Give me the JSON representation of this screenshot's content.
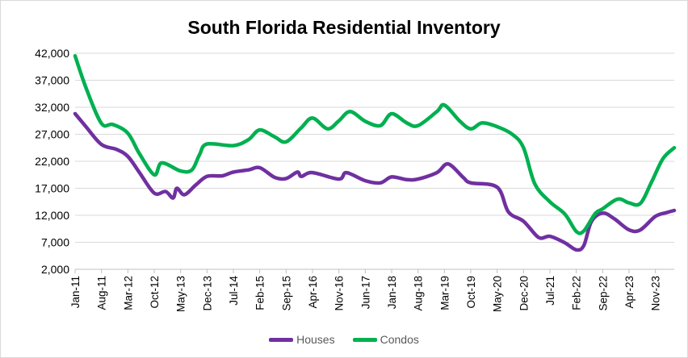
{
  "chart_data": {
    "type": "line",
    "title": "South Florida Residential Inventory",
    "xlabel": "",
    "ylabel": "",
    "ylim": [
      2000,
      42000
    ],
    "y_ticks": [
      "2,000",
      "7,000",
      "12,000",
      "17,000",
      "22,000",
      "27,000",
      "32,000",
      "37,000",
      "42,000"
    ],
    "x_tick_labels": [
      "Jan-11",
      "Aug-11",
      "Mar-12",
      "Oct-12",
      "May-13",
      "Dec-13",
      "Jul-14",
      "Feb-15",
      "Sep-15",
      "Apr-16",
      "Nov-16",
      "Jun-17",
      "Jan-18",
      "Aug-18",
      "Mar-19",
      "Oct-19",
      "May-20",
      "Dec-20",
      "Jul-21",
      "Feb-22",
      "Sep-22",
      "Apr-23",
      "Nov-23"
    ],
    "grid": "horizontal",
    "legend_position": "bottom",
    "x_start": "Jan-11",
    "x_end": "Apr-24",
    "series": [
      {
        "name": "Houses",
        "color": "#7030A0",
        "points": [
          [
            "Jan-11",
            30800
          ],
          [
            "Apr-11",
            28300
          ],
          [
            "Aug-11",
            25100
          ],
          [
            "Dec-11",
            24200
          ],
          [
            "Mar-12",
            22900
          ],
          [
            "Jun-12",
            20000
          ],
          [
            "Oct-12",
            16100
          ],
          [
            "Jan-13",
            16400
          ],
          [
            "Mar-13",
            15200
          ],
          [
            "Apr-13",
            17000
          ],
          [
            "Jun-13",
            15800
          ],
          [
            "Sep-13",
            17600
          ],
          [
            "Dec-13",
            19200
          ],
          [
            "Apr-14",
            19300
          ],
          [
            "Jul-14",
            20000
          ],
          [
            "Nov-14",
            20400
          ],
          [
            "Feb-15",
            20800
          ],
          [
            "Jun-15",
            19000
          ],
          [
            "Sep-15",
            18800
          ],
          [
            "Dec-15",
            20000
          ],
          [
            "Jan-16",
            19200
          ],
          [
            "Apr-16",
            19900
          ],
          [
            "Nov-16",
            18700
          ],
          [
            "Jan-17",
            19900
          ],
          [
            "Jun-17",
            18400
          ],
          [
            "Oct-17",
            18000
          ],
          [
            "Jan-18",
            19100
          ],
          [
            "May-18",
            18600
          ],
          [
            "Aug-18",
            18700
          ],
          [
            "Jan-19",
            19900
          ],
          [
            "Apr-19",
            21500
          ],
          [
            "Aug-19",
            19000
          ],
          [
            "Oct-19",
            18000
          ],
          [
            "May-20",
            17200
          ],
          [
            "Aug-20",
            12600
          ],
          [
            "Dec-20",
            10900
          ],
          [
            "Apr-21",
            7900
          ],
          [
            "Jul-21",
            8100
          ],
          [
            "Nov-21",
            6900
          ],
          [
            "Feb-22",
            5600
          ],
          [
            "Apr-22",
            6400
          ],
          [
            "Jun-22",
            10800
          ],
          [
            "Sep-22",
            12400
          ],
          [
            "Dec-22",
            11400
          ],
          [
            "Apr-23",
            9300
          ],
          [
            "Jul-23",
            9300
          ],
          [
            "Nov-23",
            11800
          ],
          [
            "Feb-24",
            12500
          ],
          [
            "Apr-24",
            12900
          ]
        ]
      },
      {
        "name": "Condos",
        "color": "#00B050",
        "points": [
          [
            "Jan-11",
            41500
          ],
          [
            "Apr-11",
            35400
          ],
          [
            "Aug-11",
            29000
          ],
          [
            "Nov-11",
            28800
          ],
          [
            "Mar-12",
            27200
          ],
          [
            "Jun-12",
            23500
          ],
          [
            "Oct-12",
            19500
          ],
          [
            "Dec-12",
            21700
          ],
          [
            "May-13",
            20200
          ],
          [
            "Aug-13",
            20400
          ],
          [
            "Oct-13",
            23200
          ],
          [
            "Dec-13",
            25200
          ],
          [
            "Jul-14",
            24900
          ],
          [
            "Nov-14",
            26000
          ],
          [
            "Feb-15",
            27800
          ],
          [
            "Jun-15",
            26500
          ],
          [
            "Sep-15",
            25600
          ],
          [
            "Jan-16",
            28200
          ],
          [
            "Apr-16",
            30000
          ],
          [
            "Aug-16",
            28000
          ],
          [
            "Nov-16",
            29500
          ],
          [
            "Feb-17",
            31200
          ],
          [
            "Jun-17",
            29400
          ],
          [
            "Oct-17",
            28600
          ],
          [
            "Jan-18",
            30800
          ],
          [
            "May-18",
            29100
          ],
          [
            "Aug-18",
            28600
          ],
          [
            "Jan-19",
            31200
          ],
          [
            "Mar-19",
            32400
          ],
          [
            "Jul-19",
            29500
          ],
          [
            "Oct-19",
            28000
          ],
          [
            "Jan-20",
            29100
          ],
          [
            "May-20",
            28400
          ],
          [
            "Sep-20",
            27000
          ],
          [
            "Dec-20",
            24500
          ],
          [
            "Mar-21",
            17800
          ],
          [
            "Jul-21",
            14500
          ],
          [
            "Nov-21",
            12200
          ],
          [
            "Feb-22",
            9000
          ],
          [
            "Apr-22",
            9100
          ],
          [
            "Jul-22",
            12300
          ],
          [
            "Sep-22",
            13200
          ],
          [
            "Jan-23",
            15000
          ],
          [
            "Apr-23",
            14300
          ],
          [
            "Jul-23",
            14200
          ],
          [
            "Oct-23",
            18200
          ],
          [
            "Jan-24",
            22500
          ],
          [
            "Apr-24",
            24500
          ]
        ]
      }
    ]
  }
}
